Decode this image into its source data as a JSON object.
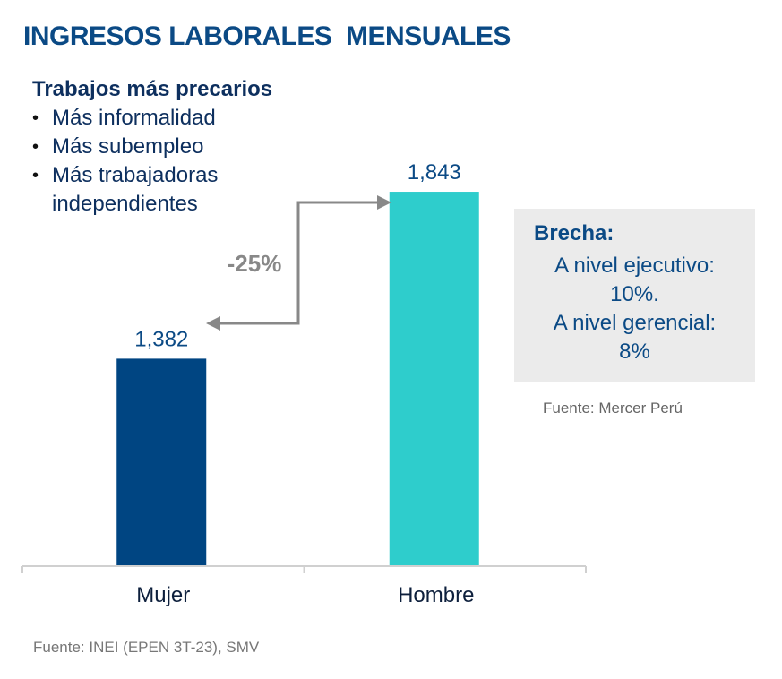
{
  "title": "INGRESOS LABORALES  MENSUALES",
  "notes": {
    "heading": "Trabajos más precarios",
    "bullets": [
      "Más informalidad",
      "Más subempleo",
      "Más trabajadoras",
      "independientes"
    ]
  },
  "gap_box": {
    "heading": "Brecha:",
    "lines": [
      "A nivel ejecutivo:",
      "10%.",
      "A nivel gerencial:",
      "8%"
    ],
    "source": "Fuente: Mercer Perú"
  },
  "source": "Fuente: INEI (EPEN 3T-23), SMV",
  "chart_data": {
    "type": "bar",
    "categories": [
      "Mujer",
      "Hombre"
    ],
    "values": [
      1382,
      1843
    ],
    "data_labels": [
      "1,382",
      "1,843"
    ],
    "colors": [
      "#004582",
      "#2ecdcc"
    ],
    "annotation": "-25%",
    "annotation_color": "#888888",
    "axis_color": "#d0d0d0",
    "label_color": "#0b4a85",
    "ylim": [
      809,
      1900
    ],
    "grid": false
  }
}
